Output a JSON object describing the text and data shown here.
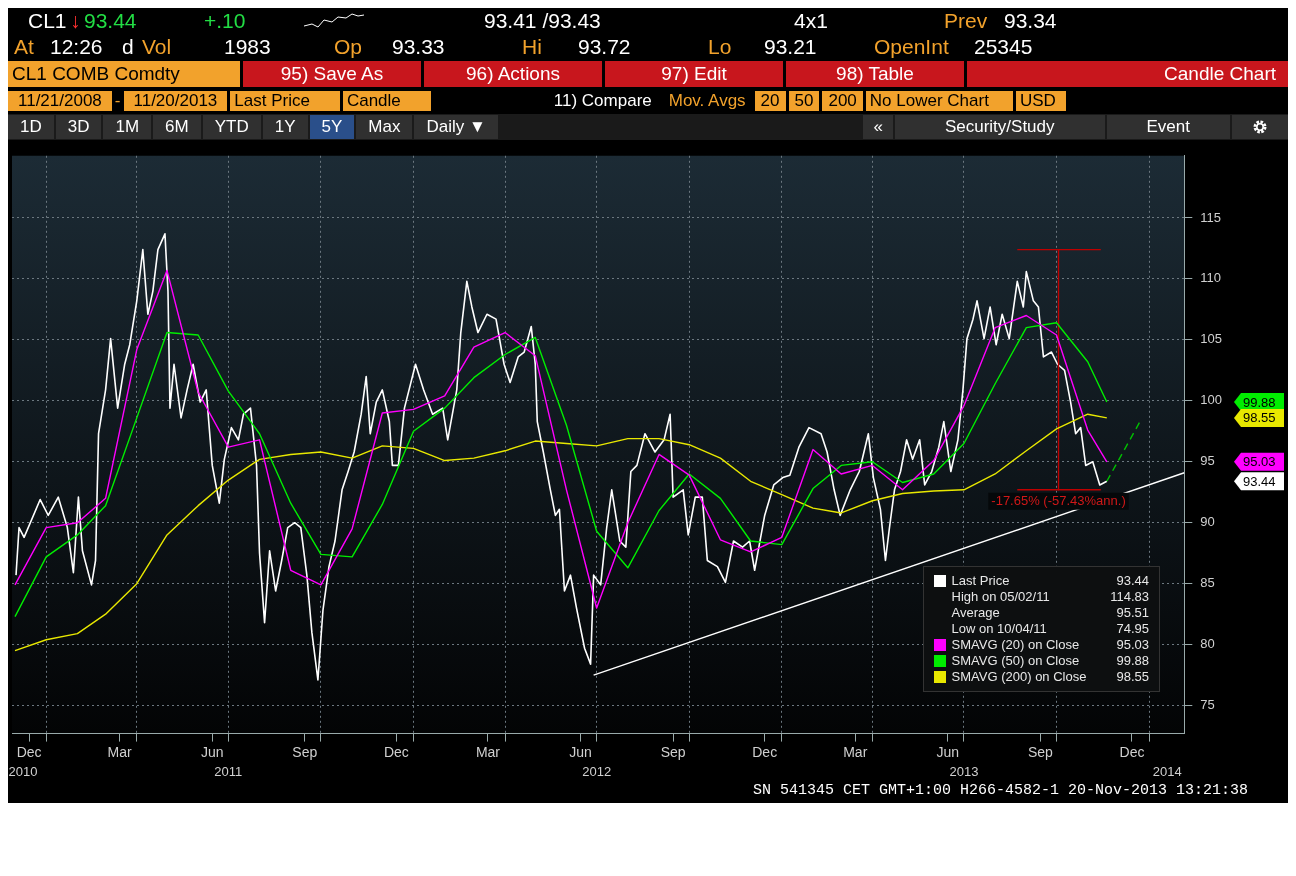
{
  "chart_data": {
    "type": "line",
    "xlim": [
      "2010-11-28",
      "2014-02-05"
    ],
    "xticks": [
      {
        "value": "2010-12-15",
        "label": "Dec"
      },
      {
        "value": "2011-01-01",
        "label": null
      },
      {
        "value": "2011-03-15",
        "label": "Mar"
      },
      {
        "value": "2011-04-01",
        "label": null
      },
      {
        "value": "2011-06-15",
        "label": "Jun"
      },
      {
        "value": "2011-07-01",
        "label": null
      },
      {
        "value": "2011-09-15",
        "label": "Sep"
      },
      {
        "value": "2011-10-01",
        "label": null
      },
      {
        "value": "2011-12-15",
        "label": "Dec"
      },
      {
        "value": "2012-01-01",
        "label": null
      },
      {
        "value": "2012-03-15",
        "label": "Mar"
      },
      {
        "value": "2012-04-01",
        "label": null
      },
      {
        "value": "2012-06-15",
        "label": "Jun"
      },
      {
        "value": "2012-07-01",
        "label": null
      },
      {
        "value": "2012-09-15",
        "label": "Sep"
      },
      {
        "value": "2012-10-01",
        "label": null
      },
      {
        "value": "2012-12-15",
        "label": "Dec"
      },
      {
        "value": "2013-01-01",
        "label": null
      },
      {
        "value": "2013-03-15",
        "label": "Mar"
      },
      {
        "value": "2013-04-01",
        "label": null
      },
      {
        "value": "2013-06-15",
        "label": "Jun"
      },
      {
        "value": "2013-07-01",
        "label": null
      },
      {
        "value": "2013-09-15",
        "label": "Sep"
      },
      {
        "value": "2013-10-01",
        "label": null
      },
      {
        "value": "2013-12-15",
        "label": "Dec"
      },
      {
        "value": "2014-01-01",
        "label": null
      }
    ],
    "x2lim": [
      "2010-11-28",
      "2014-02-05"
    ],
    "x2ticks": [
      {
        "value": "2010-12-09",
        "label": "2010"
      },
      {
        "value": "2011-07-01",
        "label": "2011"
      },
      {
        "value": "2012-07-01",
        "label": "2012"
      },
      {
        "value": "2013-07-01",
        "label": "2013"
      },
      {
        "value": "2014-01-19",
        "label": "2014"
      }
    ],
    "ylim": [
      72.7,
      120.1
    ],
    "yticks": [
      75,
      80,
      85,
      90,
      95,
      100,
      105,
      110,
      115
    ],
    "grid": true,
    "legend": "bottom right",
    "series": [
      {
        "name": "Last Price",
        "color": "#ffffff",
        "x": [
          "2010-12-02",
          "2010-12-05",
          "2010-12-10",
          "2010-12-26",
          "2011-01-03",
          "2011-01-13",
          "2011-01-22",
          "2011-01-28",
          "2011-02-02",
          "2011-02-06",
          "2011-02-15",
          "2011-02-19",
          "2011-02-22",
          "2011-03-01",
          "2011-03-06",
          "2011-03-13",
          "2011-03-20",
          "2011-03-25",
          "2011-04-01",
          "2011-04-07",
          "2011-04-12",
          "2011-04-17",
          "2011-04-22",
          "2011-04-29",
          "2011-05-02",
          "2011-05-04",
          "2011-05-08",
          "2011-05-15",
          "2011-05-21",
          "2011-05-27",
          "2011-06-03",
          "2011-06-09",
          "2011-06-15",
          "2011-06-22",
          "2011-06-27",
          "2011-07-04",
          "2011-07-11",
          "2011-07-16",
          "2011-07-23",
          "2011-07-29",
          "2011-08-01",
          "2011-08-06",
          "2011-08-11",
          "2011-08-17",
          "2011-08-23",
          "2011-08-29",
          "2011-09-05",
          "2011-09-11",
          "2011-09-17",
          "2011-09-22",
          "2011-09-28",
          "2011-10-03",
          "2011-10-09",
          "2011-10-15",
          "2011-10-22",
          "2011-10-28",
          "2011-11-03",
          "2011-11-10",
          "2011-11-15",
          "2011-11-19",
          "2011-11-25",
          "2011-12-01",
          "2011-12-08",
          "2011-12-11",
          "2011-12-17",
          "2011-12-23",
          "2012-01-03",
          "2012-01-11",
          "2012-01-20",
          "2012-01-30",
          "2012-02-04",
          "2012-02-13",
          "2012-02-17",
          "2012-02-23",
          "2012-02-28",
          "2012-03-05",
          "2012-03-14",
          "2012-03-23",
          "2012-03-31",
          "2012-04-06",
          "2012-04-14",
          "2012-04-20",
          "2012-04-27",
          "2012-05-01",
          "2012-05-03",
          "2012-05-09",
          "2012-05-16",
          "2012-05-21",
          "2012-05-25",
          "2012-05-30",
          "2012-06-05",
          "2012-06-11",
          "2012-06-19",
          "2012-06-25",
          "2012-06-28",
          "2012-07-05",
          "2012-07-11",
          "2012-07-16",
          "2012-07-24",
          "2012-07-30",
          "2012-08-04",
          "2012-08-10",
          "2012-08-18",
          "2012-08-28",
          "2012-09-06",
          "2012-09-12",
          "2012-09-15",
          "2012-09-25",
          "2012-09-30",
          "2012-10-07",
          "2012-10-14",
          "2012-10-19",
          "2012-10-29",
          "2012-11-06",
          "2012-11-14",
          "2012-11-23",
          "2012-11-30",
          "2012-12-05",
          "2012-12-15",
          "2012-12-24",
          "2013-01-02",
          "2013-01-09",
          "2013-01-18",
          "2013-01-28",
          "2013-02-09",
          "2013-02-15",
          "2013-02-22",
          "2013-02-28",
          "2013-03-10",
          "2013-03-19",
          "2013-03-28",
          "2013-04-02",
          "2013-04-09",
          "2013-04-14",
          "2013-04-18",
          "2013-04-23",
          "2013-04-29",
          "2013-05-05",
          "2013-05-11",
          "2013-05-18",
          "2013-05-23",
          "2013-05-30",
          "2013-06-06",
          "2013-06-11",
          "2013-06-18",
          "2013-06-25",
          "2013-06-30",
          "2013-07-04",
          "2013-07-10",
          "2013-07-14",
          "2013-07-21",
          "2013-07-27",
          "2013-08-02",
          "2013-08-08",
          "2013-08-15",
          "2013-08-23",
          "2013-08-29",
          "2013-09-01",
          "2013-09-08",
          "2013-09-13",
          "2013-09-18",
          "2013-09-26",
          "2013-10-02",
          "2013-10-09",
          "2013-10-15",
          "2013-10-20",
          "2013-10-25",
          "2013-10-30",
          "2013-11-06",
          "2013-11-13",
          "2013-11-20"
        ],
        "values": [
          85.7,
          89.6,
          88.8,
          91.9,
          90.6,
          92.1,
          89.6,
          85.9,
          92.1,
          87.7,
          84.9,
          86.9,
          97.3,
          100.9,
          105.1,
          99.4,
          103.0,
          104.6,
          108.2,
          112.4,
          107.1,
          109.0,
          112.4,
          113.7,
          109.0,
          99.4,
          103.0,
          98.6,
          100.9,
          103.0,
          99.9,
          100.9,
          94.7,
          91.6,
          95.2,
          97.8,
          96.8,
          98.9,
          99.4,
          94.7,
          87.5,
          81.8,
          87.7,
          84.4,
          86.9,
          89.6,
          90.0,
          89.6,
          85.7,
          81.0,
          77.1,
          82.8,
          86.4,
          88.5,
          92.7,
          94.2,
          95.8,
          98.9,
          102.0,
          97.3,
          99.9,
          100.9,
          98.3,
          94.7,
          94.7,
          99.4,
          103.0,
          100.9,
          98.9,
          99.4,
          96.8,
          100.9,
          105.6,
          109.8,
          107.7,
          105.6,
          107.1,
          106.7,
          103.0,
          101.5,
          103.6,
          104.0,
          106.1,
          103.0,
          98.3,
          95.8,
          92.7,
          90.6,
          91.1,
          84.4,
          85.7,
          83.0,
          79.7,
          78.4,
          85.7,
          84.9,
          89.6,
          92.7,
          88.5,
          88.0,
          94.2,
          94.7,
          97.3,
          95.8,
          96.8,
          98.9,
          92.1,
          92.7,
          89.0,
          92.1,
          92.1,
          86.9,
          86.4,
          85.1,
          88.5,
          88.0,
          88.5,
          86.1,
          90.6,
          93.1,
          93.7,
          93.9,
          96.2,
          97.8,
          97.3,
          95.8,
          92.7,
          90.6,
          92.7,
          94.2,
          97.3,
          93.7,
          91.1,
          86.9,
          89.6,
          92.7,
          94.2,
          96.8,
          95.2,
          96.8,
          93.1,
          94.2,
          96.2,
          98.3,
          94.2,
          96.8,
          100.9,
          105.1,
          106.7,
          108.2,
          105.1,
          107.7,
          104.6,
          107.1,
          105.1,
          109.8,
          107.7,
          110.6,
          108.2,
          107.7,
          103.6,
          104.0,
          103.0,
          102.5,
          99.9,
          97.3,
          97.8,
          94.7,
          95.0,
          93.1,
          93.4
        ]
      },
      {
        "name": "SMAVG (20) on Close",
        "color": "#ff00ff",
        "x": [
          "2010-12-01",
          "2011-01-01",
          "2011-02-01",
          "2011-03-01",
          "2011-04-01",
          "2011-05-01",
          "2011-06-01",
          "2011-07-01",
          "2011-08-01",
          "2011-09-01",
          "2011-10-01",
          "2011-11-01",
          "2011-12-01",
          "2012-01-01",
          "2012-02-01",
          "2012-03-01",
          "2012-04-01",
          "2012-05-01",
          "2012-06-01",
          "2012-07-01",
          "2012-08-01",
          "2012-09-01",
          "2012-10-01",
          "2012-11-01",
          "2012-12-01",
          "2013-01-01",
          "2013-02-01",
          "2013-03-01",
          "2013-04-01",
          "2013-05-01",
          "2013-06-01",
          "2013-07-01",
          "2013-08-01",
          "2013-09-01",
          "2013-10-01",
          "2013-11-01",
          "2013-11-20"
        ],
        "values": [
          84.9,
          89.6,
          90.0,
          92.0,
          104.2,
          110.7,
          100.7,
          96.2,
          96.8,
          86.1,
          84.9,
          89.5,
          99.0,
          99.3,
          100.4,
          104.4,
          105.6,
          103.7,
          92.7,
          83.0,
          90.0,
          95.6,
          93.9,
          88.6,
          87.6,
          88.8,
          96.0,
          94.0,
          94.7,
          92.7,
          95.1,
          99.6,
          106.0,
          107.0,
          105.4,
          97.6,
          95.0
        ]
      },
      {
        "name": "SMAVG (50) on Close",
        "color": "#00ee00",
        "x": [
          "2010-12-01",
          "2011-01-01",
          "2011-02-01",
          "2011-03-01",
          "2011-04-01",
          "2011-05-01",
          "2011-06-01",
          "2011-07-01",
          "2011-08-01",
          "2011-09-01",
          "2011-10-01",
          "2011-11-01",
          "2011-12-01",
          "2012-01-01",
          "2012-02-01",
          "2012-03-01",
          "2012-04-01",
          "2012-05-01",
          "2012-06-01",
          "2012-07-01",
          "2012-08-01",
          "2012-09-01",
          "2012-10-01",
          "2012-11-01",
          "2012-12-01",
          "2013-01-01",
          "2013-02-01",
          "2013-03-01",
          "2013-04-01",
          "2013-05-01",
          "2013-06-01",
          "2013-07-01",
          "2013-08-01",
          "2013-09-01",
          "2013-10-01",
          "2013-11-01",
          "2013-11-20"
        ],
        "values": [
          82.3,
          87.2,
          89.0,
          91.4,
          98.6,
          105.6,
          105.4,
          100.8,
          97.3,
          91.6,
          87.4,
          87.2,
          91.5,
          97.5,
          99.4,
          101.9,
          103.8,
          105.2,
          98.0,
          89.3,
          86.3,
          91.0,
          94.0,
          92.0,
          88.5,
          88.2,
          92.8,
          94.7,
          95.0,
          93.3,
          94.0,
          96.5,
          101.4,
          106.0,
          106.4,
          103.2,
          99.9
        ]
      },
      {
        "name": "SMAVG (200) on Close",
        "color": "#e8e800",
        "x": [
          "2010-12-01",
          "2011-01-01",
          "2011-02-01",
          "2011-03-01",
          "2011-04-01",
          "2011-05-01",
          "2011-06-01",
          "2011-07-01",
          "2011-08-01",
          "2011-09-01",
          "2011-10-01",
          "2011-11-01",
          "2011-12-01",
          "2012-01-01",
          "2012-02-01",
          "2012-03-01",
          "2012-04-01",
          "2012-05-01",
          "2012-06-01",
          "2012-07-01",
          "2012-08-01",
          "2012-09-01",
          "2012-10-01",
          "2012-11-01",
          "2012-12-01",
          "2013-01-01",
          "2013-02-01",
          "2013-03-01",
          "2013-04-01",
          "2013-05-01",
          "2013-06-01",
          "2013-07-01",
          "2013-08-01",
          "2013-09-01",
          "2013-10-01",
          "2013-11-01",
          "2013-11-20"
        ],
        "values": [
          79.5,
          80.4,
          80.9,
          82.5,
          85.0,
          89.0,
          91.4,
          93.5,
          95.2,
          95.6,
          95.8,
          95.3,
          96.3,
          96.1,
          95.1,
          95.3,
          95.9,
          96.7,
          96.5,
          96.3,
          96.9,
          96.9,
          96.4,
          95.3,
          93.4,
          92.3,
          91.2,
          90.8,
          91.8,
          92.4,
          92.6,
          92.7,
          94.0,
          95.9,
          97.7,
          98.9,
          98.6
        ]
      },
      {
        "type": "line",
        "color": "#ffffff",
        "x": [
          "2012-06-28",
          "2014-02-05"
        ],
        "values": [
          77.5,
          94.1
        ]
      },
      {
        "type": "line",
        "color": "#c00000",
        "x": [
          "2013-08-23",
          "2013-11-14"
        ],
        "values": [
          112.4,
          112.4
        ]
      },
      {
        "type": "line",
        "color": "#c00000",
        "x": [
          "2013-10-03",
          "2013-10-03"
        ],
        "values": [
          112.4,
          92.7
        ]
      },
      {
        "type": "line",
        "color": "#c00000",
        "x": [
          "2013-08-23",
          "2013-11-14"
        ],
        "values": [
          92.7,
          92.7
        ]
      },
      {
        "type": "line",
        "color": "#00c000",
        "line_style": "dashed",
        "x": [
          "2013-11-20",
          "2013-12-23"
        ],
        "values": [
          93.4,
          98.3
        ]
      }
    ],
    "annotations": [
      "93.44",
      "95.03",
      "99.88",
      "98.55",
      {
        "text": "-17.65% (-57.43%ann.)",
        "x": "2013-10-03",
        "y": 92.7
      },
      "High on 05/02/11 114.83",
      "Average 95.51",
      "Low on 10/04/11 74.95",
      "CL1",
      "↓",
      "93.44",
      "+.10",
      "93.41 /93.43",
      "4x1",
      "Prev",
      "93.34",
      "At",
      "12:26",
      "d",
      "Vol",
      "1983",
      "Op",
      "93.33",
      "Hi",
      "93.72",
      "Lo",
      "93.21",
      "OpenInt",
      "25345",
      "CL1 COMB Comdty",
      "95) Save As",
      "96) Actions",
      "97) Edit",
      "98) Table",
      "Candle Chart",
      "11/21/2008",
      "-",
      "11/20/2013",
      "Last Price",
      "Candle",
      "11) Compare",
      "Mov. Avgs",
      "20",
      "50",
      "200",
      "No Lower Chart",
      "USD",
      "1D",
      "3D",
      "1M",
      "6M",
      "YTD",
      "1Y",
      "5Y",
      "Max",
      "Daily ▼",
      "«",
      "Security/Study",
      "Event",
      "SN 541345 CET GMT+1:00 H266-4582-1 20-Nov-2013 13:21:38"
    ]
  }
}
